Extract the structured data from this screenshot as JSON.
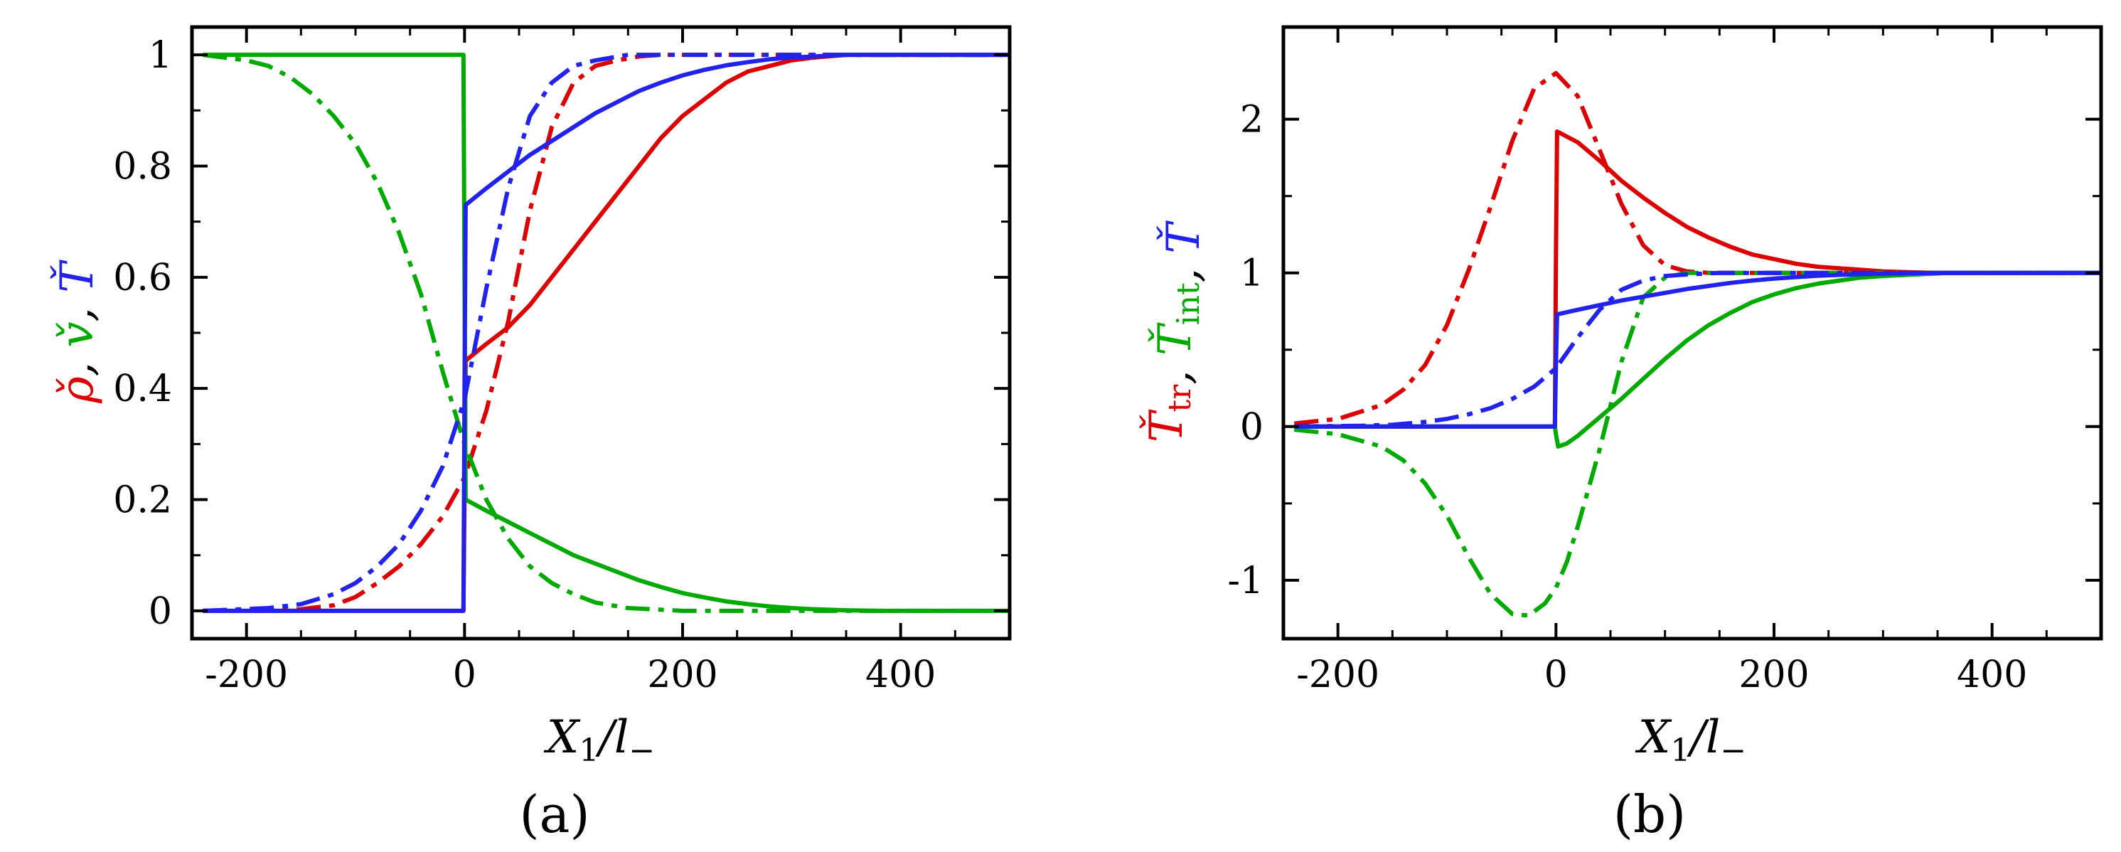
{
  "colors": {
    "red": "#dd0000",
    "green": "#00aa00",
    "blue": "#2222ee"
  },
  "chart_data": [
    {
      "type": "line",
      "panel_label": "(a)",
      "xlabel_main": "X",
      "xlabel_sub": "1",
      "xlabel_tail": "/l",
      "xlabel_tail_sub": "−",
      "ylabel_parts": [
        {
          "symbol": "ρ̌",
          "color": "red"
        },
        {
          "symbol": ", ",
          "color": "black"
        },
        {
          "symbol": "v̌",
          "color": "green"
        },
        {
          "symbol": ", ",
          "color": "black"
        },
        {
          "symbol": "Ť",
          "color": "blue"
        }
      ],
      "xlim": [
        -250,
        500
      ],
      "ylim": [
        -0.05,
        1.05
      ],
      "xticks": [
        -200,
        0,
        200,
        400
      ],
      "xtick_labels": [
        "-200",
        "0",
        "200",
        "400"
      ],
      "yticks": [
        0,
        0.2,
        0.4,
        0.6,
        0.8,
        1
      ],
      "ytick_labels": [
        "0",
        "0.2",
        "0.4",
        "0.6",
        "0.8",
        "1"
      ],
      "series": [
        {
          "name": "density solid",
          "color": "red",
          "dash": "solid",
          "x": [
            -240,
            -1,
            0,
            1,
            20,
            40,
            60,
            80,
            100,
            120,
            140,
            160,
            180,
            200,
            220,
            240,
            260,
            280,
            300,
            320,
            350,
            380,
            420,
            460,
            500
          ],
          "y": [
            0,
            0,
            0.2,
            0.45,
            0.48,
            0.51,
            0.55,
            0.6,
            0.65,
            0.7,
            0.75,
            0.8,
            0.85,
            0.89,
            0.92,
            0.95,
            0.97,
            0.98,
            0.99,
            0.995,
            1,
            1,
            1,
            1,
            1
          ]
        },
        {
          "name": "density dash-dot",
          "color": "red",
          "dash": "dashdot",
          "x": [
            -240,
            -180,
            -150,
            -120,
            -100,
            -80,
            -60,
            -40,
            -20,
            0,
            20,
            40,
            60,
            80,
            100,
            120,
            140,
            160,
            180,
            200,
            250,
            300,
            400,
            500
          ],
          "y": [
            0,
            0,
            0.003,
            0.01,
            0.025,
            0.05,
            0.08,
            0.12,
            0.17,
            0.24,
            0.36,
            0.52,
            0.72,
            0.87,
            0.95,
            0.98,
            0.99,
            0.997,
            1,
            1,
            1,
            1,
            1,
            1
          ]
        },
        {
          "name": "velocity solid",
          "color": "green",
          "dash": "solid",
          "x": [
            -240,
            -1,
            0,
            1,
            20,
            40,
            60,
            80,
            100,
            120,
            140,
            160,
            180,
            200,
            220,
            240,
            260,
            280,
            300,
            320,
            350,
            380,
            420,
            460,
            500
          ],
          "y": [
            1,
            1,
            0.6,
            0.2,
            0.18,
            0.16,
            0.14,
            0.12,
            0.1,
            0.085,
            0.07,
            0.055,
            0.043,
            0.032,
            0.024,
            0.017,
            0.012,
            0.008,
            0.005,
            0.003,
            0.001,
            0,
            0,
            0,
            0
          ]
        },
        {
          "name": "velocity dash-dot",
          "color": "green",
          "dash": "dashdot",
          "x": [
            -240,
            -200,
            -180,
            -160,
            -140,
            -120,
            -100,
            -80,
            -60,
            -40,
            -20,
            0,
            20,
            40,
            60,
            80,
            100,
            120,
            150,
            200,
            300,
            400,
            500
          ],
          "y": [
            1,
            0.99,
            0.98,
            0.96,
            0.93,
            0.89,
            0.84,
            0.77,
            0.68,
            0.57,
            0.43,
            0.3,
            0.2,
            0.13,
            0.08,
            0.05,
            0.03,
            0.015,
            0.005,
            0,
            0,
            0,
            0
          ]
        },
        {
          "name": "temperature solid",
          "color": "blue",
          "dash": "solid",
          "x": [
            -240,
            -1,
            0,
            1,
            20,
            40,
            60,
            80,
            100,
            120,
            140,
            160,
            180,
            200,
            220,
            240,
            260,
            280,
            300,
            320,
            350,
            380,
            420,
            460,
            500
          ],
          "y": [
            0,
            0,
            0.4,
            0.73,
            0.76,
            0.79,
            0.82,
            0.845,
            0.87,
            0.895,
            0.915,
            0.935,
            0.95,
            0.963,
            0.973,
            0.981,
            0.987,
            0.992,
            0.995,
            0.997,
            1,
            1,
            1,
            1,
            1
          ]
        },
        {
          "name": "temperature dash-dot",
          "color": "blue",
          "dash": "dashdot",
          "x": [
            -240,
            -180,
            -150,
            -120,
            -100,
            -80,
            -60,
            -40,
            -20,
            0,
            20,
            40,
            60,
            80,
            100,
            120,
            150,
            200,
            300,
            400,
            500
          ],
          "y": [
            0,
            0.005,
            0.012,
            0.03,
            0.05,
            0.08,
            0.12,
            0.18,
            0.26,
            0.38,
            0.58,
            0.76,
            0.89,
            0.95,
            0.98,
            0.99,
            1,
            1,
            1,
            1,
            1
          ]
        }
      ]
    },
    {
      "type": "line",
      "panel_label": "(b)",
      "xlabel_main": "X",
      "xlabel_sub": "1",
      "xlabel_tail": "/l",
      "xlabel_tail_sub": "−",
      "ylabel_parts": [
        {
          "symbol": "Ť",
          "sub": "tr",
          "color": "red"
        },
        {
          "symbol": ", ",
          "color": "black"
        },
        {
          "symbol": "Ť",
          "sub": "int",
          "color": "green"
        },
        {
          "symbol": ", ",
          "color": "black"
        },
        {
          "symbol": "Ť",
          "color": "blue"
        }
      ],
      "xlim": [
        -250,
        500
      ],
      "ylim": [
        -1.38,
        2.6
      ],
      "xticks": [
        -200,
        0,
        200,
        400
      ],
      "xtick_labels": [
        "-200",
        "0",
        "200",
        "400"
      ],
      "yticks": [
        -1,
        0,
        1,
        2
      ],
      "ytick_labels": [
        "-1",
        "0",
        "1",
        "2"
      ],
      "series": [
        {
          "name": "translational temperature solid",
          "color": "red",
          "dash": "solid",
          "x": [
            -240,
            -1,
            0,
            1,
            20,
            40,
            60,
            80,
            100,
            120,
            140,
            160,
            180,
            200,
            220,
            240,
            260,
            280,
            300,
            320,
            350,
            400,
            450,
            500
          ],
          "y": [
            0,
            0,
            1.1,
            1.92,
            1.85,
            1.73,
            1.6,
            1.49,
            1.39,
            1.3,
            1.23,
            1.17,
            1.12,
            1.09,
            1.06,
            1.04,
            1.03,
            1.02,
            1.01,
            1.005,
            1,
            1,
            1,
            1
          ]
        },
        {
          "name": "translational temperature dash-dot",
          "color": "red",
          "dash": "dashdot",
          "x": [
            -240,
            -200,
            -160,
            -140,
            -120,
            -100,
            -80,
            -60,
            -40,
            -20,
            0,
            20,
            40,
            60,
            80,
            100,
            120,
            140,
            160,
            200,
            250,
            300,
            400,
            500
          ],
          "y": [
            0.02,
            0.05,
            0.14,
            0.24,
            0.4,
            0.66,
            1.02,
            1.43,
            1.86,
            2.2,
            2.3,
            2.15,
            1.8,
            1.45,
            1.18,
            1.05,
            1.01,
            1.0,
            1.0,
            1.0,
            1.0,
            1.0,
            1.0,
            1.0
          ]
        },
        {
          "name": "internal temperature solid",
          "color": "green",
          "dash": "solid",
          "x": [
            -240,
            -1,
            0,
            2,
            10,
            20,
            40,
            60,
            80,
            100,
            120,
            140,
            160,
            180,
            200,
            220,
            240,
            260,
            280,
            300,
            330,
            360,
            400,
            450,
            500
          ],
          "y": [
            0,
            0,
            -0.05,
            -0.13,
            -0.11,
            -0.06,
            0.06,
            0.18,
            0.31,
            0.44,
            0.56,
            0.66,
            0.74,
            0.81,
            0.86,
            0.9,
            0.93,
            0.95,
            0.97,
            0.98,
            0.99,
            1.0,
            1.0,
            1.0,
            1.0
          ]
        },
        {
          "name": "internal temperature dash-dot",
          "color": "green",
          "dash": "dashdot",
          "x": [
            -240,
            -200,
            -160,
            -140,
            -120,
            -100,
            -80,
            -60,
            -40,
            -25,
            -10,
            0,
            10,
            20,
            40,
            60,
            80,
            100,
            120,
            140,
            160,
            200,
            250,
            300,
            400,
            500
          ],
          "y": [
            -0.02,
            -0.05,
            -0.13,
            -0.22,
            -0.37,
            -0.58,
            -0.85,
            -1.09,
            -1.22,
            -1.23,
            -1.15,
            -1.05,
            -0.88,
            -0.65,
            -0.15,
            0.42,
            0.84,
            0.97,
            1.0,
            1.0,
            1.0,
            1.0,
            1.0,
            1.0,
            1.0,
            1.0
          ]
        },
        {
          "name": "temperature solid",
          "color": "blue",
          "dash": "solid",
          "x": [
            -240,
            -1,
            0,
            1,
            20,
            40,
            60,
            80,
            100,
            120,
            140,
            160,
            180,
            200,
            220,
            240,
            260,
            280,
            300,
            320,
            350,
            380,
            420,
            460,
            500
          ],
          "y": [
            0,
            0,
            0.4,
            0.73,
            0.76,
            0.79,
            0.82,
            0.845,
            0.87,
            0.895,
            0.915,
            0.935,
            0.95,
            0.963,
            0.973,
            0.981,
            0.987,
            0.992,
            0.995,
            0.997,
            1,
            1,
            1,
            1,
            1
          ]
        },
        {
          "name": "temperature dash-dot",
          "color": "blue",
          "dash": "dashdot",
          "x": [
            -240,
            -180,
            -150,
            -120,
            -100,
            -80,
            -60,
            -40,
            -20,
            0,
            20,
            40,
            60,
            80,
            100,
            120,
            150,
            200,
            300,
            400,
            500
          ],
          "y": [
            0,
            0.005,
            0.012,
            0.03,
            0.05,
            0.08,
            0.12,
            0.18,
            0.26,
            0.38,
            0.58,
            0.76,
            0.89,
            0.95,
            0.98,
            0.99,
            1,
            1,
            1,
            1,
            1
          ]
        }
      ]
    }
  ]
}
